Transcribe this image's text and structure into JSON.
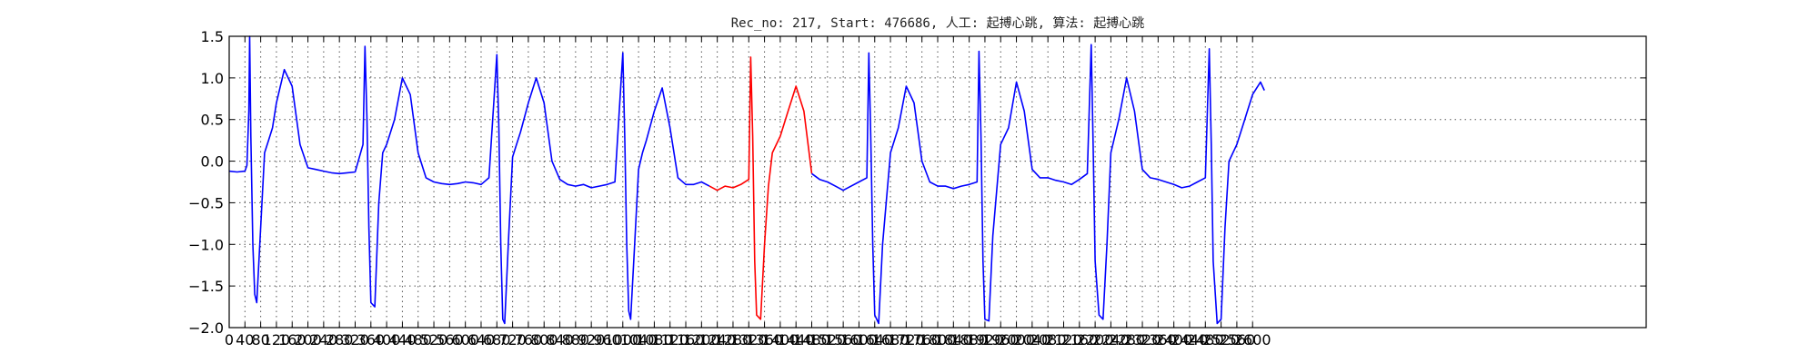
{
  "chart_data": {
    "type": "line",
    "title": "Rec_no: 217, Start: 476686, 人工: 起搏心跳, 算法: 起搏心跳",
    "xlabel": "",
    "ylabel": "",
    "xlim": [
      0,
      3600
    ],
    "ylim": [
      -2.0,
      1.5
    ],
    "grid": true,
    "yticks": [
      1.5,
      1.0,
      0.5,
      0.0,
      -0.5,
      -1.0,
      -1.5,
      -2.0
    ],
    "ytick_labels": [
      "1.5",
      "1.0",
      "0.5",
      "0.0",
      "−0.5",
      "−1.0",
      "−1.5",
      "−2.0"
    ],
    "xticks": [
      0,
      40,
      80,
      120,
      160,
      200,
      240,
      280,
      320,
      360,
      400,
      440,
      480,
      520,
      560,
      600,
      640,
      680,
      720,
      760,
      800,
      840,
      880,
      920,
      960,
      1000,
      1040,
      1080,
      1120,
      1160,
      1200,
      1240,
      1280,
      1320,
      1360,
      1400,
      1440,
      1480,
      1520,
      1560,
      1600,
      1640,
      1680,
      1720,
      1760,
      1800,
      1840,
      1880,
      1920,
      1960,
      2000,
      2040,
      2080,
      2120,
      2160,
      2200,
      2240,
      2280,
      2320,
      2360,
      2400,
      2440,
      2480,
      2520,
      2560,
      2600
    ],
    "series": [
      {
        "color": "#0000ff",
        "x": [
          0,
          20,
          40,
          45,
          50,
          52,
          55,
          60,
          65,
          70,
          80,
          90,
          100,
          110,
          120,
          140,
          160,
          180,
          200,
          220,
          240,
          260,
          280,
          300,
          320,
          340,
          345,
          350,
          355,
          360,
          370,
          380,
          390,
          400,
          420,
          440,
          460,
          480,
          500,
          520,
          540,
          560,
          580,
          600,
          620,
          640,
          660,
          680,
          685,
          690,
          695,
          700,
          710,
          720,
          730,
          740,
          760,
          780,
          800,
          820,
          840,
          860,
          880,
          900,
          920,
          940,
          960,
          980,
          1000,
          1005,
          1010,
          1015,
          1020,
          1030,
          1040,
          1050,
          1060,
          1080,
          1100,
          1120,
          1140,
          1160,
          1180,
          1200,
          1220
        ],
        "y": [
          -0.12,
          -0.13,
          -0.12,
          -0.05,
          0.6,
          1.5,
          0.3,
          -1.0,
          -1.6,
          -1.7,
          -0.8,
          0.1,
          0.25,
          0.4,
          0.7,
          1.1,
          0.9,
          0.2,
          -0.08,
          -0.1,
          -0.12,
          -0.14,
          -0.15,
          -0.14,
          -0.13,
          0.2,
          1.38,
          0.5,
          -0.8,
          -1.7,
          -1.75,
          -0.5,
          0.1,
          0.2,
          0.5,
          1.0,
          0.8,
          0.1,
          -0.2,
          -0.25,
          -0.27,
          -0.28,
          -0.27,
          -0.25,
          -0.26,
          -0.28,
          -0.2,
          1.28,
          0.4,
          -1.0,
          -1.9,
          -1.95,
          -0.9,
          0.05,
          0.2,
          0.35,
          0.7,
          1.0,
          0.7,
          0.0,
          -0.22,
          -0.28,
          -0.3,
          -0.28,
          -0.32,
          -0.3,
          -0.28,
          -0.25,
          1.3,
          0.3,
          -1.0,
          -1.8,
          -1.9,
          -1.0,
          -0.1,
          0.1,
          0.25,
          0.6,
          0.88,
          0.4,
          -0.2,
          -0.28,
          -0.28,
          -0.25,
          -0.3
        ]
      },
      {
        "color": "#ff0000",
        "x": [
          1220,
          1240,
          1260,
          1280,
          1300,
          1320,
          1325,
          1330,
          1335,
          1340,
          1350,
          1360,
          1370,
          1380,
          1400,
          1420,
          1440,
          1460,
          1480
        ],
        "y": [
          -0.3,
          -0.35,
          -0.3,
          -0.32,
          -0.28,
          -0.22,
          1.25,
          0.3,
          -1.2,
          -1.85,
          -1.9,
          -1.0,
          -0.3,
          0.1,
          0.3,
          0.6,
          0.9,
          0.6,
          -0.15
        ]
      },
      {
        "color": "#0000ff",
        "x": [
          1480,
          1500,
          1520,
          1540,
          1560,
          1580,
          1600,
          1620,
          1625,
          1630,
          1635,
          1640,
          1650,
          1660,
          1680,
          1700,
          1720,
          1740,
          1760,
          1780,
          1800,
          1820,
          1840,
          1860,
          1880,
          1900,
          1905,
          1910,
          1915,
          1920,
          1930,
          1940,
          1960,
          1980,
          2000,
          2020,
          2040,
          2060,
          2080,
          2100,
          2120,
          2140,
          2160,
          2180,
          2190,
          2195,
          2200,
          2210,
          2220,
          2230,
          2240,
          2260,
          2280,
          2300,
          2320,
          2340,
          2360,
          2380,
          2400,
          2420,
          2440,
          2460,
          2480,
          2490,
          2495,
          2500,
          2510,
          2520,
          2530,
          2540,
          2560,
          2580,
          2600,
          2620,
          2630
        ],
        "y": [
          -0.15,
          -0.22,
          -0.25,
          -0.3,
          -0.35,
          -0.3,
          -0.25,
          -0.2,
          1.3,
          0.3,
          -1.0,
          -1.85,
          -1.95,
          -1.0,
          0.1,
          0.4,
          0.9,
          0.7,
          0.0,
          -0.25,
          -0.3,
          -0.3,
          -0.33,
          -0.3,
          -0.28,
          -0.25,
          1.32,
          0.3,
          -1.2,
          -1.9,
          -1.92,
          -0.9,
          0.2,
          0.4,
          0.95,
          0.6,
          -0.1,
          -0.2,
          -0.2,
          -0.23,
          -0.25,
          -0.28,
          -0.22,
          -0.15,
          1.4,
          0.2,
          -1.2,
          -1.85,
          -1.9,
          -1.0,
          0.1,
          0.5,
          1.0,
          0.6,
          -0.1,
          -0.2,
          -0.22,
          -0.25,
          -0.28,
          -0.32,
          -0.3,
          -0.25,
          -0.2,
          1.35,
          0.2,
          -1.2,
          -1.95,
          -1.9,
          -0.8,
          0.0,
          0.2,
          0.5,
          0.8,
          0.95,
          0.85
        ]
      }
    ]
  }
}
